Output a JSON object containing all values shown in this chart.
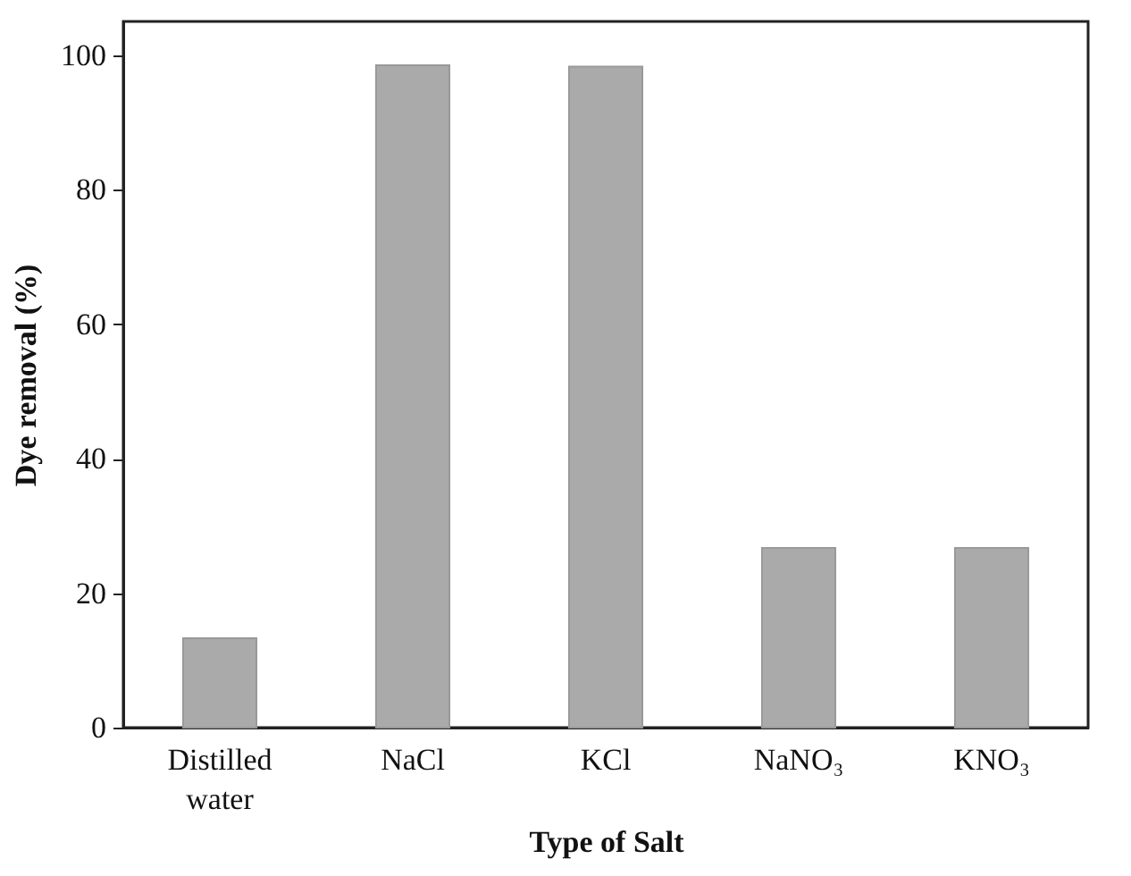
{
  "chart_data": {
    "type": "bar",
    "xlabel": "Type of Salt",
    "ylabel": "Dye removal (%)",
    "categories": [
      "Distilled water",
      "NaCl",
      "KCl",
      "NaNO₃",
      "KNO₃"
    ],
    "values": [
      13.3,
      98.5,
      98.3,
      26.7,
      26.7
    ],
    "color": "#aaaaaa",
    "ylim": [
      0,
      105
    ],
    "yticks": [
      0,
      20,
      40,
      60,
      80,
      100
    ],
    "grid": false
  }
}
